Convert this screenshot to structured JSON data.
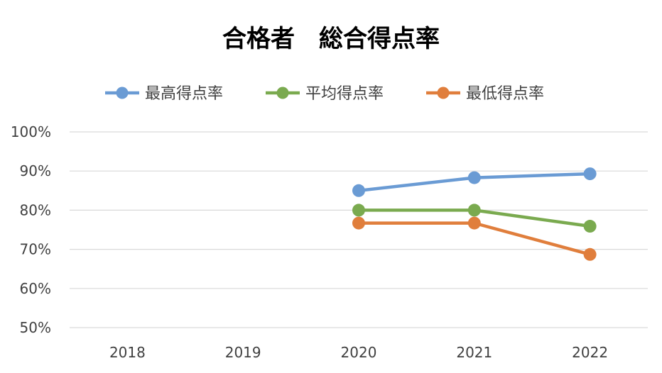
{
  "chart_data": {
    "type": "line",
    "title": "合格者　総合得点率",
    "xlabel": "",
    "ylabel": "",
    "categories": [
      "2018",
      "2019",
      "2020",
      "2021",
      "2022"
    ],
    "ylim": [
      50,
      100
    ],
    "yticks": [
      100,
      90,
      80,
      70,
      60,
      50
    ],
    "ytick_labels": [
      "100%",
      "90%",
      "80%",
      "70%",
      "60%",
      "50%"
    ],
    "grid": true,
    "legend_position": "top",
    "series": [
      {
        "name": "最高得点率",
        "color": "#6A9BD4",
        "values": [
          null,
          null,
          85.0,
          88.3,
          89.3
        ]
      },
      {
        "name": "平均得点率",
        "color": "#7AAA4F",
        "values": [
          null,
          null,
          80.0,
          80.0,
          75.9
        ]
      },
      {
        "name": "最低得点率",
        "color": "#E07E3C",
        "values": [
          null,
          null,
          76.7,
          76.7,
          68.7
        ]
      }
    ]
  }
}
